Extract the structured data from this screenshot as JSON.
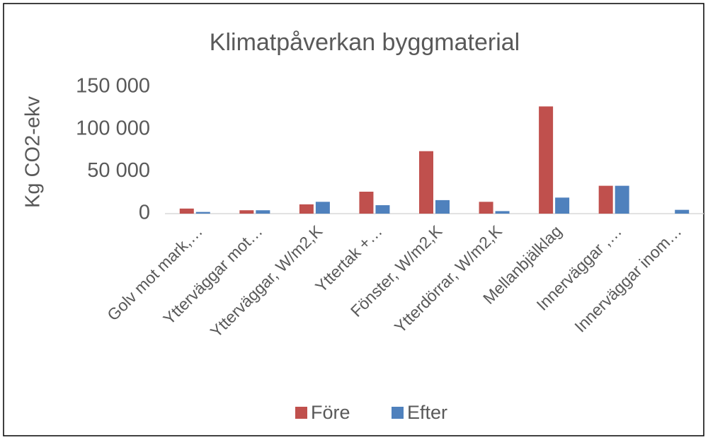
{
  "chart_data": {
    "type": "bar",
    "title": "Klimatpåverkan byggmaterial",
    "y_label": "Kg CO2-ekv",
    "categories": [
      "Golv mot mark,…",
      "Ytterväggar mot…",
      "Ytterväggar,  W/m2,K",
      "Yttertak +…",
      "Fönster,  W/m2,K",
      "Ytterdörrar,  W/m2,K",
      "Mellanbjälklag",
      "Innerväggar ,…",
      "Innerväggar inom…"
    ],
    "series": [
      {
        "name": "Före",
        "color": "#c0504d",
        "values": [
          6000,
          4000,
          11000,
          26000,
          74000,
          14000,
          127000,
          33000,
          0
        ]
      },
      {
        "name": "Efter",
        "color": "#4f81bd",
        "values": [
          2000,
          4000,
          14000,
          10000,
          16000,
          3000,
          19000,
          33000,
          4500
        ]
      }
    ],
    "ylim": [
      0,
      150000
    ],
    "yticks": [
      0,
      {
        "value": 50000,
        "label": "50 000"
      },
      {
        "value": 100000,
        "label": "100 000"
      },
      {
        "value": 150000,
        "label": "150 000"
      }
    ],
    "grid": false,
    "legend": "bottom"
  }
}
